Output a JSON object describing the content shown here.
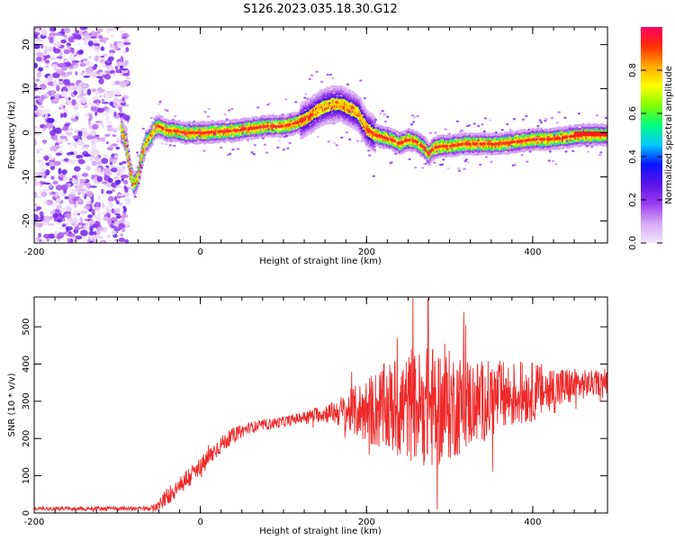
{
  "title": "S126.2023.035.18.30.G12",
  "chart_data": [
    {
      "type": "heatmap",
      "xlabel": "Height of straight line (km)",
      "ylabel": "Frequency (Hz)",
      "xlim": [
        -200,
        490
      ],
      "ylim": [
        -25,
        24
      ],
      "xticks": [
        -200,
        0,
        200,
        400
      ],
      "yticks": [
        -20,
        -10,
        0,
        10,
        20
      ],
      "colorbar": {
        "label": "Normalized spectral amplitude",
        "ticks": [
          0.0,
          0.2,
          0.4,
          0.6,
          0.8
        ],
        "range": [
          0,
          1
        ],
        "colormap": [
          "#f2e6fb",
          "#d7a8f4",
          "#9b3cf0",
          "#5a14e6",
          "#0b14ff",
          "#00c8ff",
          "#00ff7f",
          "#7fff00",
          "#ffff00",
          "#ffaa00",
          "#ff3000",
          "#ff0066"
        ]
      },
      "ridge": {
        "x": [
          -95,
          -90,
          -85,
          -80,
          -75,
          -70,
          -65,
          -60,
          -55,
          -50,
          -40,
          -30,
          -20,
          0,
          20,
          40,
          60,
          80,
          100,
          110,
          120,
          130,
          140,
          150,
          160,
          170,
          180,
          190,
          200,
          210,
          220,
          230,
          240,
          250,
          260,
          270,
          275,
          280,
          290,
          300,
          320,
          340,
          360,
          380,
          400,
          420,
          440,
          460,
          490
        ],
        "y": [
          1,
          -2,
          -8,
          -12,
          -10,
          -5,
          -2,
          -1,
          1,
          1.5,
          0.5,
          0.5,
          0,
          0,
          0.2,
          0.5,
          1,
          1.5,
          1.5,
          2,
          2.5,
          3.5,
          5,
          6,
          6.5,
          6.5,
          5.5,
          4.5,
          1,
          -0.5,
          -1,
          -1.5,
          -2.5,
          -1.5,
          -2,
          -3.5,
          -5,
          -3.5,
          -3,
          -3,
          -2.5,
          -2.5,
          -2.5,
          -2,
          -1.5,
          -1.5,
          -1,
          -0.5,
          -0.5
        ]
      },
      "noise_region_x": [
        -200,
        -95
      ]
    },
    {
      "type": "line",
      "xlabel": "Height of straight line (km)",
      "ylabel": "SNR (10 * v/v)",
      "xlim": [
        -200,
        490
      ],
      "ylim": [
        0,
        580
      ],
      "xticks": [
        -200,
        0,
        200,
        400
      ],
      "yticks": [
        0,
        100,
        200,
        300,
        400,
        500
      ],
      "color": "#f02828",
      "envelope": {
        "x": [
          -200,
          -150,
          -100,
          -60,
          -50,
          -40,
          -20,
          0,
          20,
          40,
          60,
          80,
          100,
          120,
          140,
          160,
          180,
          200,
          220,
          240,
          260,
          270,
          280,
          290,
          300,
          320,
          340,
          360,
          380,
          400,
          420,
          440,
          460,
          490
        ],
        "mean": [
          12,
          12,
          12,
          12,
          20,
          45,
          85,
          120,
          175,
          210,
          230,
          238,
          245,
          255,
          265,
          270,
          272,
          275,
          280,
          282,
          285,
          285,
          285,
          285,
          288,
          295,
          300,
          310,
          318,
          325,
          330,
          338,
          345,
          352
        ],
        "spread": [
          5,
          5,
          5,
          6,
          15,
          25,
          30,
          30,
          25,
          20,
          15,
          15,
          15,
          15,
          20,
          30,
          60,
          90,
          120,
          140,
          150,
          160,
          170,
          160,
          150,
          130,
          110,
          100,
          90,
          80,
          70,
          55,
          40,
          30
        ]
      },
      "peaks": [
        {
          "x": 237,
          "y": 470
        },
        {
          "x": 254,
          "y": 440
        },
        {
          "x": 274,
          "y": 575
        },
        {
          "x": 285,
          "y": 545
        },
        {
          "x": 285,
          "y": 10
        }
      ]
    }
  ]
}
